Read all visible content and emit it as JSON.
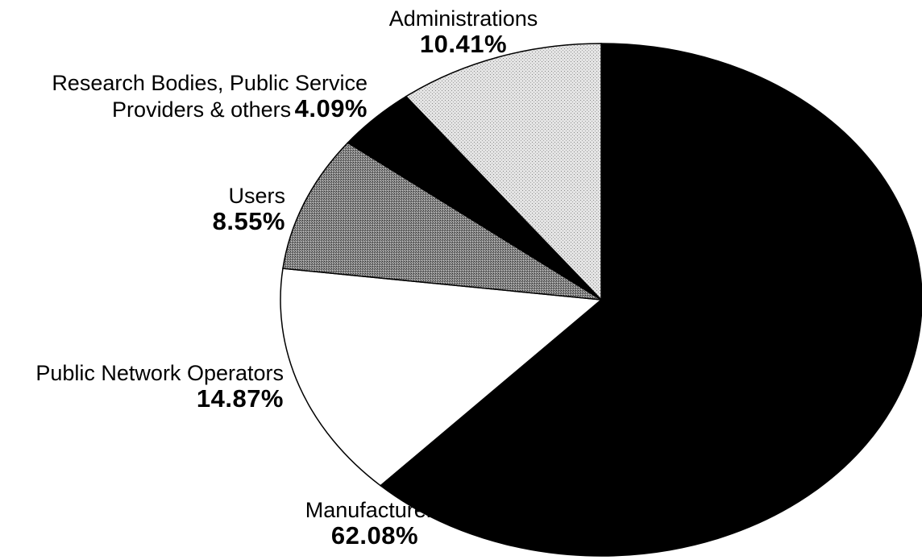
{
  "chart_data": {
    "type": "pie",
    "slices": [
      {
        "label": "Manufacturers",
        "value": 62.08,
        "value_label": "62.08%",
        "fill": "#000000",
        "pattern": "solid"
      },
      {
        "label": "Public Network Operators",
        "value": 14.87,
        "value_label": "14.87%",
        "fill": "#ffffff",
        "pattern": "solid"
      },
      {
        "label": "Users",
        "value": 8.55,
        "value_label": "8.55%",
        "fill": "#7a7a7a",
        "pattern": "dark-stipple"
      },
      {
        "label": "Research Bodies, Public Service Providers & others",
        "label_line1": "Research Bodies, Public Service",
        "label_line2": "Providers & others",
        "value": 4.09,
        "value_label": "4.09%",
        "fill": "#000000",
        "pattern": "solid"
      },
      {
        "label": "Administrations",
        "value": 10.41,
        "value_label": "10.41%",
        "fill": "#dcdcdc",
        "pattern": "light-stipple"
      }
    ],
    "title": "",
    "legend": "none",
    "labels": "outside"
  }
}
